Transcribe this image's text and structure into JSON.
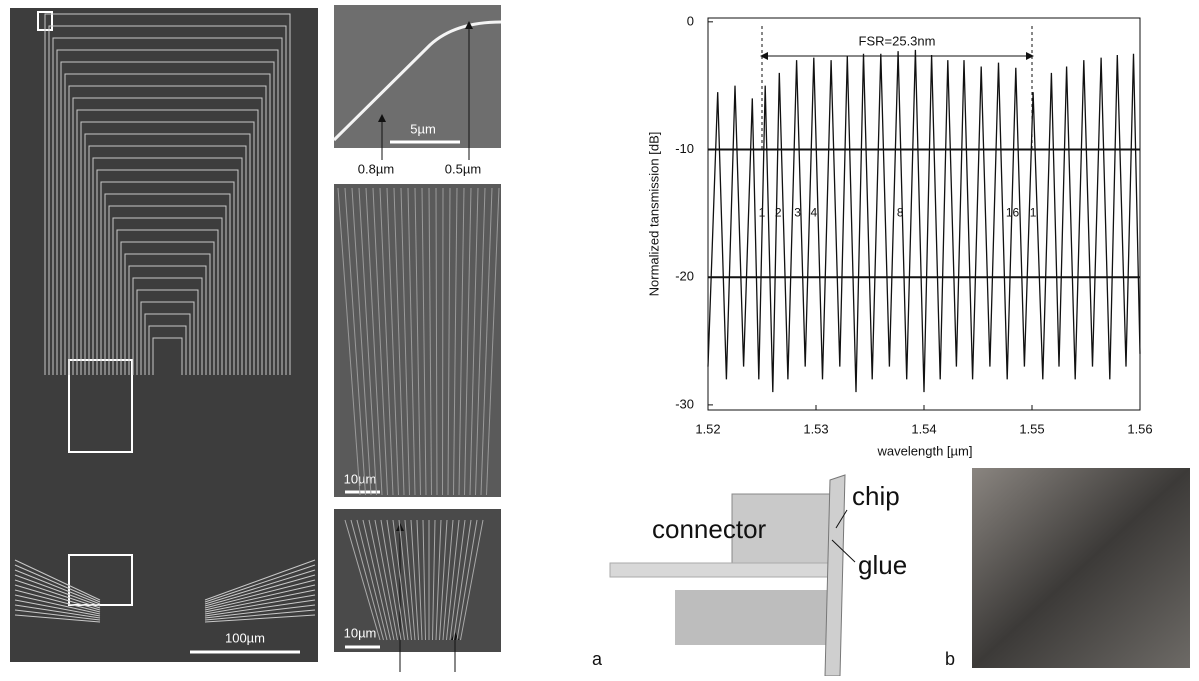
{
  "chart_data": {
    "type": "line",
    "y_label": "Normalized tansmission [dB]",
    "x_label": "wavelength [µm]",
    "xlim": [
      1.52,
      1.56
    ],
    "xticks": [
      1.52,
      1.53,
      1.54,
      1.55,
      1.56
    ],
    "ylim": [
      -30.4,
      0.3
    ],
    "yticks": [
      0,
      -10,
      -20,
      -30
    ],
    "grid_lines": [
      -10,
      -20
    ],
    "color": "#111111",
    "annotation": "FSR=25.3nm",
    "fsr_markers": [
      1.525,
      1.55
    ],
    "channel_labels": [
      {
        "text": "1",
        "x": 1.525
      },
      {
        "text": "2",
        "x": 1.5265
      },
      {
        "text": "3",
        "x": 1.5283
      },
      {
        "text": "4",
        "x": 1.5298
      },
      {
        "text": "8",
        "x": 1.5378
      },
      {
        "text": "16",
        "x": 1.5482
      },
      {
        "text": "1",
        "x": 1.5501
      }
    ],
    "x": [
      1.52,
      1.5209,
      1.5217,
      1.5225,
      1.5233,
      1.5241,
      1.5247,
      1.5253,
      1.526,
      1.5266,
      1.5274,
      1.5282,
      1.529,
      1.5298,
      1.5306,
      1.5314,
      1.5322,
      1.5329,
      1.5337,
      1.5344,
      1.5352,
      1.536,
      1.5368,
      1.5376,
      1.5384,
      1.5392,
      1.54,
      1.5407,
      1.5415,
      1.5422,
      1.543,
      1.5437,
      1.5445,
      1.5453,
      1.5461,
      1.5469,
      1.5477,
      1.5485,
      1.5493,
      1.5501,
      1.551,
      1.5518,
      1.5525,
      1.5532,
      1.554,
      1.5548,
      1.5556,
      1.5564,
      1.5572,
      1.5579,
      1.5587,
      1.5594,
      1.56
    ],
    "values": [
      -27,
      -5.5,
      -28,
      -5,
      -27,
      -6,
      -28,
      -5,
      -29,
      -4,
      -28,
      -3,
      -27,
      -2.8,
      -28,
      -3,
      -27,
      -2.7,
      -29,
      -2.5,
      -28,
      -2.5,
      -27,
      -2.3,
      -28,
      -2.2,
      -29,
      -2.6,
      -28,
      -3,
      -27,
      -3,
      -28,
      -3.5,
      -27,
      -3.2,
      -28,
      -3.6,
      -27,
      -5.5,
      -28,
      -4,
      -27,
      -3.5,
      -28,
      -3,
      -27,
      -2.8,
      -28,
      -2.6,
      -27,
      -2.5,
      -26
    ]
  },
  "sem": {
    "scale_main": "100µm",
    "top_inset": {
      "scale": "5µm",
      "width_left": "0.8µm",
      "width_right": "0.5µm"
    },
    "middle_inset": {
      "scale": "10µm"
    },
    "bottom_inset": {
      "scale": "10µm"
    }
  },
  "assembly": {
    "panel_a": "a",
    "panel_b": "b",
    "connector": "connector",
    "chip": "chip",
    "glue": "glue"
  }
}
